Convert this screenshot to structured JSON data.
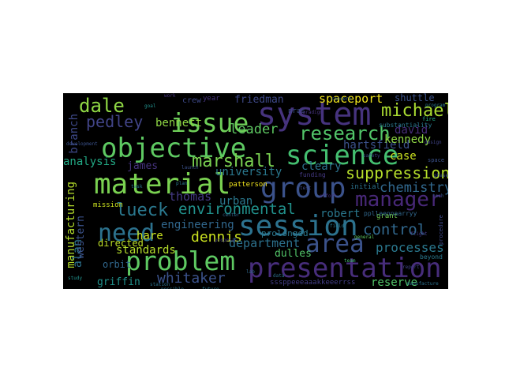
{
  "wordcloud": {
    "words": [
      {
        "text": "system",
        "color": "#46337e"
      },
      {
        "text": "objective",
        "color": "#5ec962"
      },
      {
        "text": "material",
        "color": "#7ad151"
      },
      {
        "text": "science",
        "color": "#44bf70"
      },
      {
        "text": "issue",
        "color": "#6ece58"
      },
      {
        "text": "group",
        "color": "#3b528b"
      },
      {
        "text": "session",
        "color": "#2c728e"
      },
      {
        "text": "presentation",
        "color": "#472d7b"
      },
      {
        "text": "problem",
        "color": "#5ec962"
      },
      {
        "text": "area",
        "color": "#3b528b"
      },
      {
        "text": "need",
        "color": "#2c728e"
      },
      {
        "text": "dale",
        "color": "#8fd744"
      },
      {
        "text": "research",
        "color": "#52c569"
      },
      {
        "text": "michael",
        "color": "#aadc32"
      },
      {
        "text": "manager",
        "color": "#482878"
      },
      {
        "text": "lueck",
        "color": "#2a788e"
      },
      {
        "text": "pedley",
        "color": "#414487"
      },
      {
        "text": "marshall",
        "color": "#7ad151"
      },
      {
        "text": "suppression",
        "color": "#b5de2b"
      },
      {
        "text": "environmental",
        "color": "#21918c"
      },
      {
        "text": "chemistry",
        "color": "#31688e"
      },
      {
        "text": "control",
        "color": "#31688e"
      },
      {
        "text": "whitaker",
        "color": "#3b528b"
      },
      {
        "text": "dennis",
        "color": "#cae11f"
      },
      {
        "text": "department",
        "color": "#2c728e"
      },
      {
        "text": "processes",
        "color": "#2a788e"
      },
      {
        "text": "manufacturing",
        "color": "#b5de2b"
      },
      {
        "text": "leader",
        "color": "#5ec962"
      },
      {
        "text": "friedman",
        "color": "#3e4989"
      },
      {
        "text": "spaceport",
        "color": "#f1e51d"
      },
      {
        "text": "bennett",
        "color": "#8fd744"
      },
      {
        "text": "hartsfield",
        "color": "#3b528b"
      },
      {
        "text": "kennedy",
        "color": "#8fd744"
      },
      {
        "text": "david",
        "color": "#472d7b"
      },
      {
        "text": "case",
        "color": "#cae11f"
      },
      {
        "text": "cleary",
        "color": "#2c728e"
      },
      {
        "text": "university",
        "color": "#2a788e"
      },
      {
        "text": "james",
        "color": "#46337e"
      },
      {
        "text": "analysis",
        "color": "#22a884"
      },
      {
        "text": "branch",
        "color": "#3e4989"
      },
      {
        "text": "engineering",
        "color": "#31688e"
      },
      {
        "text": "robert",
        "color": "#2a788e"
      },
      {
        "text": "urban",
        "color": "#2a788e"
      },
      {
        "text": "thomas",
        "color": "#443983"
      },
      {
        "text": "dulles",
        "color": "#52c569"
      },
      {
        "text": "standards",
        "color": "#b5de2b"
      },
      {
        "text": "hare",
        "color": "#cae11f"
      },
      {
        "text": "griffin",
        "color": "#21918c"
      },
      {
        "text": "reserve",
        "color": "#52c569"
      },
      {
        "text": "alan",
        "color": "#2c728e"
      },
      {
        "text": "western",
        "color": "#3b528b"
      },
      {
        "text": "mission",
        "color": "#cae11f"
      },
      {
        "text": "directed",
        "color": "#bddf26"
      },
      {
        "text": "orbit",
        "color": "#31688e"
      },
      {
        "text": "prolonged",
        "color": "#2a788e"
      },
      {
        "text": "patterson",
        "color": "#f1e51d"
      },
      {
        "text": "funding",
        "color": "#443983"
      },
      {
        "text": "initial",
        "color": "#2c728e"
      },
      {
        "text": "grant",
        "color": "#75d054"
      },
      {
        "text": "crew",
        "color": "#3e4989"
      },
      {
        "text": "year",
        "color": "#46337e"
      },
      {
        "text": "shuttle",
        "color": "#3b528b"
      },
      {
        "text": "nras",
        "color": "#3b528b"
      },
      {
        "text": "pplleennaarryy",
        "color": "#31688e"
      },
      {
        "text": "sssppeeeaaakkeeerrss",
        "color": "#433e85"
      },
      {
        "text": "beyond",
        "color": "#2a788e"
      },
      {
        "text": "procedure",
        "color": "#3e4989"
      },
      {
        "text": "substantiality",
        "color": "#2a788e"
      },
      {
        "text": "paradigm",
        "color": "#46337e"
      },
      {
        "text": "phase",
        "color": "#3b528b"
      },
      {
        "text": "general",
        "color": "#5ec962"
      },
      {
        "text": "manufacture",
        "color": "#2c728e"
      },
      {
        "text": "program",
        "color": "#2a788e"
      },
      {
        "text": "concern",
        "color": "#31688e"
      },
      {
        "text": "goal",
        "color": "#21918c"
      },
      {
        "text": "proposal",
        "color": "#433e85"
      },
      {
        "text": "development",
        "color": "#3b528b"
      },
      {
        "text": "possible",
        "color": "#2c728e"
      },
      {
        "text": "design",
        "color": "#414487"
      },
      {
        "text": "future",
        "color": "#2a788e"
      },
      {
        "text": "team",
        "color": "#44bf70"
      },
      {
        "text": "space",
        "color": "#3b528b"
      },
      {
        "text": "lab",
        "color": "#31688e"
      },
      {
        "text": "task",
        "color": "#2c728e"
      },
      {
        "text": "test",
        "color": "#3e4989"
      },
      {
        "text": "study",
        "color": "#21918c"
      },
      {
        "text": "report",
        "color": "#414487"
      },
      {
        "text": "plan",
        "color": "#2a788e"
      },
      {
        "text": "effort",
        "color": "#472d7b"
      },
      {
        "text": "data",
        "color": "#2c728e"
      },
      {
        "text": "tech",
        "color": "#3b528b"
      },
      {
        "text": "work",
        "color": "#46337e"
      },
      {
        "text": "fire",
        "color": "#22a884"
      },
      {
        "text": "safety",
        "color": "#3e4989"
      },
      {
        "text": "center",
        "color": "#31688e"
      },
      {
        "text": "field",
        "color": "#2a788e"
      },
      {
        "text": "flight",
        "color": "#443983"
      },
      {
        "text": "launch",
        "color": "#3b528b"
      },
      {
        "text": "station",
        "color": "#2c728e"
      }
    ]
  }
}
